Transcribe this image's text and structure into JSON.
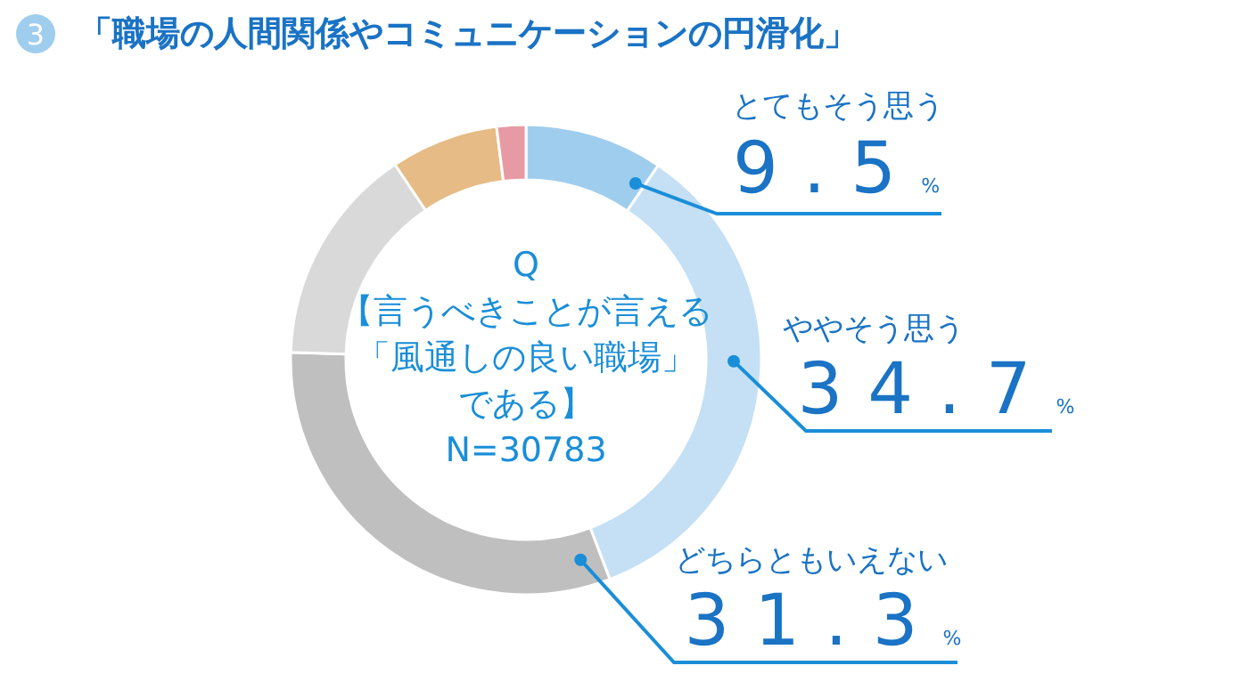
{
  "chart_data": {
    "type": "donut",
    "title": "「職場の人間関係やコミュニケーションの円滑化」",
    "categories": [
      "とてもそう思う",
      "ややそう思う",
      "どちらともいえない",
      null,
      null,
      null
    ],
    "values": [
      9.5,
      34.7,
      31.3,
      15.1,
      7.4,
      2.0
    ],
    "colors": [
      "#9fcdee",
      "#c5e0f4",
      "#bfbfbf",
      "#d9d9d9",
      "#e6bb85",
      "#e79aa3"
    ],
    "value_labels": [
      "9.5%",
      "34.7%",
      "31.3%",
      null,
      null,
      null
    ],
    "annotations": [
      "3",
      "Q",
      "【言うべきことが言える",
      "「風通しの良い職場」",
      "である】",
      "N=30783"
    ]
  }
}
